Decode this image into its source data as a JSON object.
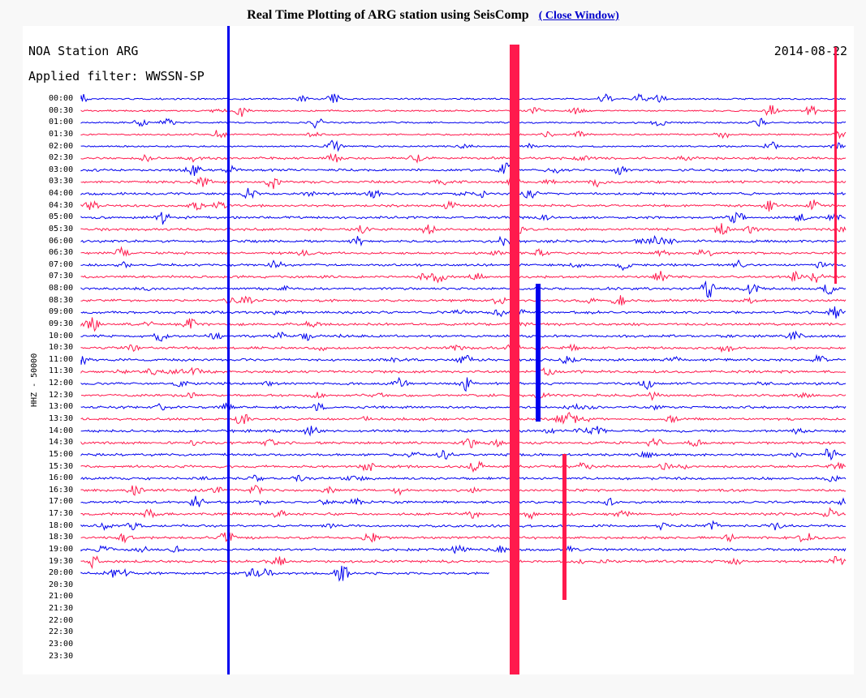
{
  "header": {
    "title": "Real Time Plotting of ARG station using SeisComp",
    "close_link": "( Close Window)"
  },
  "plot": {
    "station": "NOA Station ARG",
    "date": "2014-08-22",
    "filter": "Applied filter: WWSSN-SP",
    "channel": "HHZ - 50000",
    "colors": {
      "even_trace": "#0000ee",
      "odd_trace": "#ff1a4d"
    },
    "hours": [
      "00:00",
      "00:30",
      "01:00",
      "01:30",
      "02:00",
      "02:30",
      "03:00",
      "03:30",
      "04:00",
      "04:30",
      "05:00",
      "05:30",
      "06:00",
      "06:30",
      "07:00",
      "07:30",
      "08:00",
      "08:30",
      "09:00",
      "09:30",
      "10:00",
      "10:30",
      "11:00",
      "11:30",
      "12:00",
      "12:30",
      "13:00",
      "13:30",
      "14:00",
      "14:30",
      "15:00",
      "15:30",
      "16:00",
      "16:30",
      "17:00",
      "17:30",
      "18:00",
      "18:30",
      "19:00",
      "19:30",
      "20:00",
      "20:30",
      "21:00",
      "21:30",
      "22:00",
      "22:30",
      "23:00",
      "23:30"
    ],
    "traced_rows": 41
  }
}
